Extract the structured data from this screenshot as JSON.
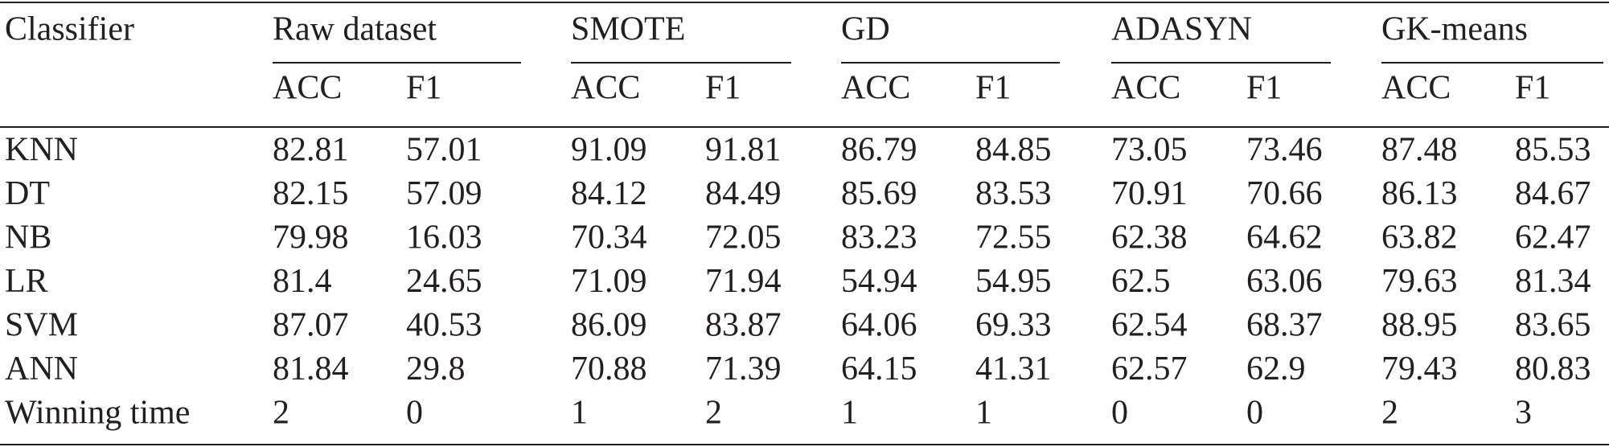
{
  "table": {
    "header": {
      "first": "Classifier",
      "groups": [
        {
          "name": "Raw dataset",
          "columns": [
            "ACC",
            "F1"
          ]
        },
        {
          "name": "SMOTE",
          "columns": [
            "ACC",
            "F1"
          ]
        },
        {
          "name": "GD",
          "columns": [
            "ACC",
            "F1"
          ]
        },
        {
          "name": "ADASYN",
          "columns": [
            "ACC",
            "F1"
          ]
        },
        {
          "name": "GK-means",
          "columns": [
            "ACC",
            "F1"
          ]
        }
      ]
    },
    "rows": [
      [
        "KNN",
        "82.81",
        "57.01",
        "91.09",
        "91.81",
        "86.79",
        "84.85",
        "73.05",
        "73.46",
        "87.48",
        "85.53"
      ],
      [
        "DT",
        "82.15",
        "57.09",
        "84.12",
        "84.49",
        "85.69",
        "83.53",
        "70.91",
        "70.66",
        "86.13",
        "84.67"
      ],
      [
        "NB",
        "79.98",
        "16.03",
        "70.34",
        "72.05",
        "83.23",
        "72.55",
        "62.38",
        "64.62",
        "63.82",
        "62.47"
      ],
      [
        "LR",
        "81.4",
        "24.65",
        "71.09",
        "71.94",
        "54.94",
        "54.95",
        "62.5",
        "63.06",
        "79.63",
        "81.34"
      ],
      [
        "SVM",
        "87.07",
        "40.53",
        "86.09",
        "83.87",
        "64.06",
        "69.33",
        "62.54",
        "68.37",
        "88.95",
        "83.65"
      ],
      [
        "ANN",
        "81.84",
        "29.8",
        "70.88",
        "71.39",
        "64.15",
        "41.31",
        "62.57",
        "62.9",
        "79.43",
        "80.83"
      ],
      [
        "Winning time",
        "2",
        "0",
        "1",
        "2",
        "1",
        "1",
        "0",
        "0",
        "2",
        "3"
      ]
    ]
  }
}
